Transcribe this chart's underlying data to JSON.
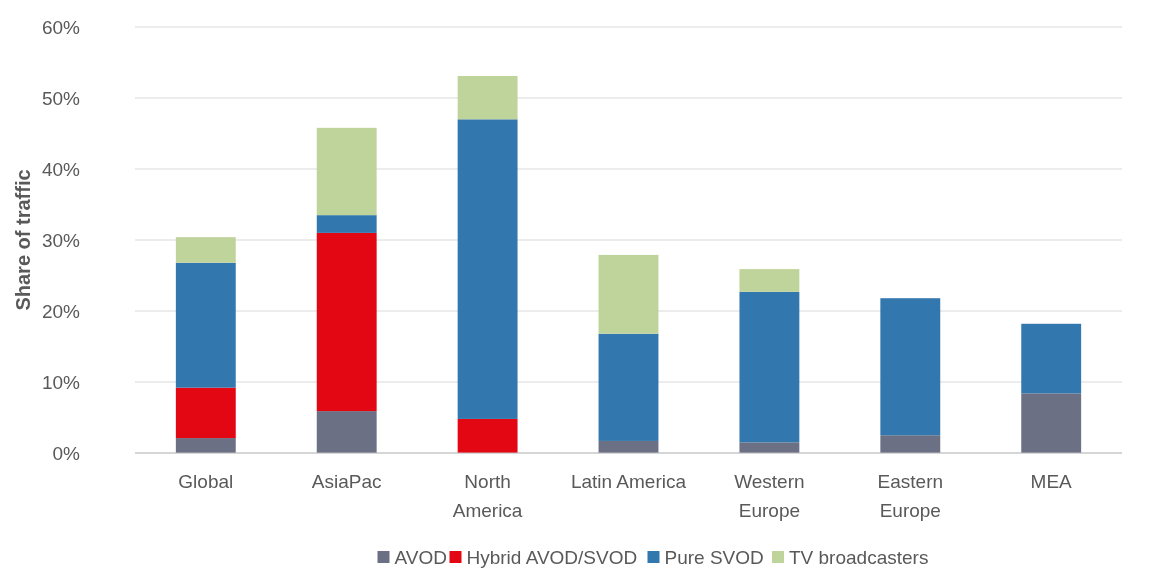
{
  "chart_data": {
    "type": "bar",
    "stacked": true,
    "ylabel": "Share of traffic",
    "categories": [
      "Global",
      "AsiaPac",
      "North\nAmerica",
      "Latin America",
      "Western\nEurope",
      "Eastern\nEurope",
      "MEA"
    ],
    "series": [
      {
        "name": "AVOD",
        "color": "#6b7085",
        "values": [
          2.1,
          5.9,
          0,
          1.7,
          1.5,
          2.5,
          8.4
        ]
      },
      {
        "name": "Hybrid AVOD/SVOD",
        "color": "#e30613",
        "values": [
          7.1,
          25.1,
          4.8,
          0,
          0,
          0,
          0
        ]
      },
      {
        "name": "Pure SVOD",
        "color": "#3277ae",
        "values": [
          17.6,
          2.5,
          42.2,
          15.1,
          21.2,
          19.3,
          9.8
        ]
      },
      {
        "name": "TV broadcasters",
        "color": "#bfd49b",
        "values": [
          3.6,
          12.3,
          6.1,
          11.1,
          3.2,
          0,
          0
        ]
      }
    ],
    "ylim": [
      0,
      60
    ],
    "yticks": [
      {
        "value": 0,
        "label": "0%"
      },
      {
        "value": 10,
        "label": "10%"
      },
      {
        "value": 20,
        "label": "20%"
      },
      {
        "value": 30,
        "label": "30%"
      },
      {
        "value": 40,
        "label": "40%"
      },
      {
        "value": 50,
        "label": "50%"
      },
      {
        "value": 60,
        "label": "60%"
      }
    ],
    "grid": "y",
    "legend": "bottom"
  }
}
